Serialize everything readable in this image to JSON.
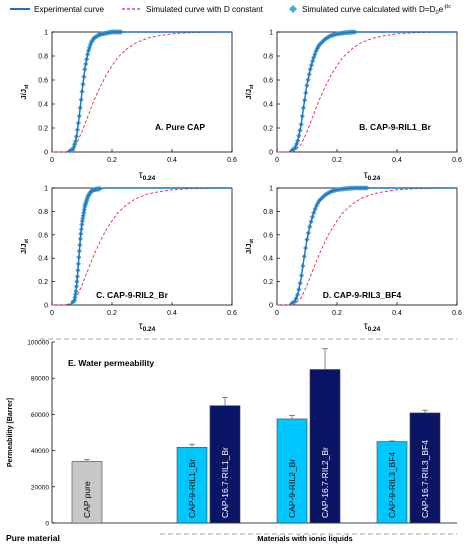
{
  "legend": {
    "experimental": "Experimental curve",
    "simulated_constant": "Simulated curve with D constant",
    "simulated_calc_prefix": "Simulated curve calculated with D=D",
    "simulated_calc_sub": "0",
    "simulated_calc_mid": "e",
    "simulated_calc_sup": "-βc"
  },
  "colors": {
    "experimental": "#1f6fbf",
    "simulated_constant": "#e8283c",
    "simulated_calc": "#4aa8d8",
    "bar_cyan": "#00c6ff",
    "bar_navy": "#0b1566",
    "bar_gray": "#c8c8c8"
  },
  "chart_data": [
    {
      "type": "line",
      "panel_label": "A. Pure CAP",
      "xlabel_main": "τ",
      "xlabel_sub": "0.24",
      "ylabel_main": "J/J",
      "ylabel_sub": "st",
      "xlim": [
        0,
        0.6
      ],
      "ylim": [
        0,
        1
      ],
      "xticks": [
        "0",
        "0.2",
        "0.4",
        "0.6"
      ],
      "yticks": [
        "0",
        "0.2",
        "0.4",
        "0.6",
        "0.8",
        "1"
      ],
      "show_xlabel": false,
      "show_ylabel": true,
      "series": [
        {
          "name": "Experimental curve",
          "x": [
            0.05,
            0.07,
            0.08,
            0.09,
            0.1,
            0.11,
            0.12,
            0.13,
            0.14,
            0.16,
            0.18,
            0.2,
            0.22,
            0.25,
            0.3,
            0.4,
            0.5,
            0.6
          ],
          "y": [
            0,
            0.02,
            0.1,
            0.28,
            0.5,
            0.7,
            0.83,
            0.91,
            0.95,
            0.98,
            0.99,
            1,
            1,
            1,
            1,
            1,
            1,
            1
          ]
        },
        {
          "name": "Simulated curve with D constant",
          "x": [
            0,
            0.04,
            0.06,
            0.08,
            0.1,
            0.12,
            0.14,
            0.16,
            0.18,
            0.2,
            0.22,
            0.25,
            0.28,
            0.32,
            0.36,
            0.4,
            0.45,
            0.5,
            0.6
          ],
          "y": [
            0,
            0,
            0.01,
            0.06,
            0.17,
            0.3,
            0.43,
            0.54,
            0.64,
            0.72,
            0.79,
            0.86,
            0.91,
            0.95,
            0.97,
            0.985,
            0.993,
            0.997,
            1
          ]
        },
        {
          "name": "Simulated curve calculated with D=D0e-βc",
          "x": [
            0.06,
            0.23
          ],
          "y": [
            0,
            1
          ]
        }
      ]
    },
    {
      "type": "line",
      "panel_label": "B. CAP-9-RIL1_Br",
      "xlabel_main": "τ",
      "xlabel_sub": "0.24",
      "ylabel_main": "J/J",
      "ylabel_sub": "st",
      "xlim": [
        0,
        0.6
      ],
      "ylim": [
        0,
        1
      ],
      "xticks": [
        "0",
        "0.2",
        "0.4",
        "0.6"
      ],
      "yticks": [
        "0",
        "0.2",
        "0.4",
        "0.6",
        "0.8",
        "1"
      ],
      "show_xlabel": true,
      "show_ylabel": true,
      "series": [
        {
          "name": "Experimental curve",
          "x": [
            0.04,
            0.06,
            0.07,
            0.08,
            0.09,
            0.1,
            0.11,
            0.12,
            0.13,
            0.14,
            0.16,
            0.18,
            0.2,
            0.23,
            0.26,
            0.3,
            0.4,
            0.5,
            0.6
          ],
          "y": [
            0,
            0.03,
            0.1,
            0.22,
            0.4,
            0.56,
            0.68,
            0.77,
            0.84,
            0.89,
            0.94,
            0.97,
            0.985,
            0.995,
            1,
            1,
            1,
            1,
            1
          ]
        },
        {
          "name": "Simulated curve with D constant",
          "x": [
            0,
            0.04,
            0.06,
            0.08,
            0.1,
            0.12,
            0.14,
            0.16,
            0.18,
            0.2,
            0.22,
            0.25,
            0.28,
            0.32,
            0.36,
            0.4,
            0.45,
            0.5,
            0.6
          ],
          "y": [
            0,
            0,
            0.01,
            0.06,
            0.17,
            0.3,
            0.43,
            0.54,
            0.64,
            0.72,
            0.79,
            0.86,
            0.91,
            0.95,
            0.97,
            0.985,
            0.993,
            0.997,
            1
          ]
        },
        {
          "name": "Simulated curve calculated with D=D0e-βc",
          "x": [
            0.05,
            0.26
          ],
          "y": [
            0,
            1
          ]
        }
      ]
    },
    {
      "type": "line",
      "panel_label": "C. CAP-9-RIL2_Br",
      "xlabel_main": "τ",
      "xlabel_sub": "0.24",
      "ylabel_main": "J/J",
      "ylabel_sub": "st",
      "xlim": [
        0,
        0.6
      ],
      "ylim": [
        0,
        1
      ],
      "xticks": [
        "0",
        "0.2",
        "0.4",
        "0.6"
      ],
      "yticks": [
        "0",
        "0.2",
        "0.4",
        "0.6",
        "0.8",
        "1"
      ],
      "show_xlabel": true,
      "show_ylabel": true,
      "series": [
        {
          "name": "Experimental curve",
          "x": [
            0.06,
            0.075,
            0.08,
            0.085,
            0.09,
            0.095,
            0.1,
            0.11,
            0.12,
            0.13,
            0.14,
            0.16,
            0.18,
            0.2,
            0.25,
            0.3,
            0.4,
            0.5,
            0.6
          ],
          "y": [
            0,
            0.04,
            0.12,
            0.25,
            0.42,
            0.58,
            0.7,
            0.85,
            0.93,
            0.97,
            0.985,
            0.995,
            1,
            1,
            1,
            1,
            1,
            1,
            1
          ]
        },
        {
          "name": "Simulated curve with D constant",
          "x": [
            0,
            0.04,
            0.06,
            0.08,
            0.1,
            0.12,
            0.14,
            0.16,
            0.18,
            0.2,
            0.22,
            0.25,
            0.28,
            0.32,
            0.36,
            0.4,
            0.45,
            0.5,
            0.6
          ],
          "y": [
            0,
            0,
            0.01,
            0.06,
            0.17,
            0.3,
            0.43,
            0.54,
            0.64,
            0.72,
            0.79,
            0.86,
            0.91,
            0.95,
            0.97,
            0.985,
            0.993,
            0.997,
            1
          ]
        },
        {
          "name": "Simulated curve calculated with D=D0e-βc",
          "x": [
            0.07,
            0.16
          ],
          "y": [
            0,
            1
          ]
        }
      ]
    },
    {
      "type": "line",
      "panel_label": "D. CAP-9-RIL3_BF4",
      "xlabel_main": "τ",
      "xlabel_sub": "0.24",
      "ylabel_main": "J/J",
      "ylabel_sub": "st",
      "xlim": [
        0,
        0.6
      ],
      "ylim": [
        0,
        1
      ],
      "xticks": [
        "0",
        "0.2",
        "0.4",
        "0.6"
      ],
      "yticks": [
        "0",
        "0.2",
        "0.4",
        "0.6",
        "0.8",
        "1"
      ],
      "show_xlabel": true,
      "show_ylabel": true,
      "series": [
        {
          "name": "Experimental curve",
          "x": [
            0.04,
            0.06,
            0.07,
            0.08,
            0.09,
            0.1,
            0.11,
            0.12,
            0.13,
            0.14,
            0.16,
            0.18,
            0.2,
            0.23,
            0.26,
            0.3,
            0.4,
            0.5,
            0.6
          ],
          "y": [
            0,
            0.03,
            0.1,
            0.22,
            0.4,
            0.56,
            0.68,
            0.77,
            0.84,
            0.89,
            0.94,
            0.97,
            0.985,
            0.995,
            1,
            1,
            1,
            1,
            1
          ]
        },
        {
          "name": "Simulated curve with D constant",
          "x": [
            0,
            0.04,
            0.06,
            0.08,
            0.1,
            0.12,
            0.14,
            0.16,
            0.18,
            0.2,
            0.22,
            0.25,
            0.28,
            0.32,
            0.36,
            0.4,
            0.45,
            0.5,
            0.6
          ],
          "y": [
            0,
            0,
            0.01,
            0.06,
            0.17,
            0.3,
            0.43,
            0.54,
            0.64,
            0.72,
            0.79,
            0.86,
            0.91,
            0.95,
            0.97,
            0.985,
            0.993,
            0.997,
            1
          ]
        },
        {
          "name": "Simulated curve calculated with D=D0e-βc",
          "x": [
            0.05,
            0.3
          ],
          "y": [
            0,
            1
          ]
        }
      ]
    },
    {
      "type": "bar",
      "panel_label": "E. Water permeability",
      "ylabel": "Permeability [Barrer]",
      "ylim": [
        0,
        100000
      ],
      "yticks": [
        "0",
        "20000",
        "40000",
        "60000",
        "80000",
        "100000"
      ],
      "bars": [
        {
          "category": "CAP pure",
          "value": 34000,
          "error": 1000,
          "color_key": "bar_gray"
        },
        {
          "category": "CAP-9-RIL1_Br",
          "value": 41800,
          "error": 1700,
          "color_key": "bar_cyan"
        },
        {
          "category": "CAP-16.7-RIL1_Br",
          "value": 64800,
          "error": 4500,
          "color_key": "bar_navy"
        },
        {
          "category": "CAP-9-RIL2_Br",
          "value": 57500,
          "error": 2000,
          "color_key": "bar_cyan"
        },
        {
          "category": "CAP-16.7-RIL2_Br",
          "value": 84800,
          "error": 11500,
          "color_key": "bar_navy"
        },
        {
          "category": "CAP-9-RIL3_BF4",
          "value": 45000,
          "error": 300,
          "color_key": "bar_cyan"
        },
        {
          "category": "CAP-16.7-RIL3_BF4",
          "value": 60800,
          "error": 1500,
          "color_key": "bar_navy"
        }
      ],
      "group_labels": [
        "Pure material",
        "Materials with ionic liquids"
      ]
    }
  ]
}
